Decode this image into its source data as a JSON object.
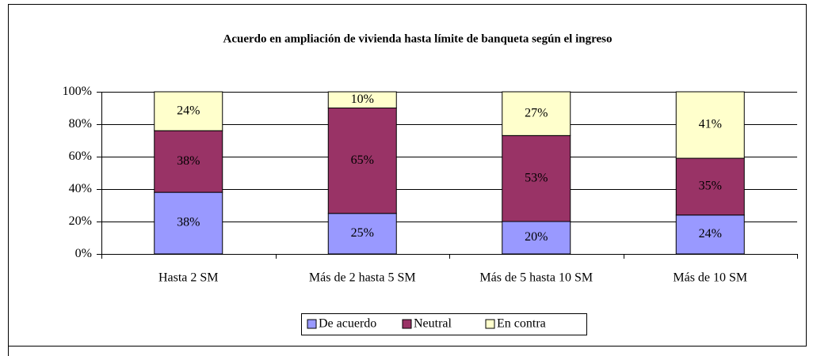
{
  "chart_data": {
    "type": "stacked_bar",
    "title": "Acuerdo en ampliación de vivienda hasta límite de banqueta según el ingreso",
    "categories": [
      "Hasta 2 SM",
      "Más de 2 hasta 5 SM",
      "Más de 5 hasta 10 SM",
      "Más de 10 SM"
    ],
    "series": [
      {
        "name": "De acuerdo",
        "color": "#9999ff",
        "values": [
          38,
          25,
          20,
          24
        ],
        "value_labels": [
          "38%",
          "25%",
          "20%",
          "24%"
        ]
      },
      {
        "name": "Neutral",
        "color": "#993366",
        "values": [
          38,
          65,
          53,
          35
        ],
        "value_labels": [
          "38%",
          "65%",
          "53%",
          "35%"
        ]
      },
      {
        "name": "En contra",
        "color": "#ffffcc",
        "values": [
          24,
          10,
          27,
          41
        ],
        "value_labels": [
          "24%",
          "10%",
          "27%",
          "41%"
        ]
      }
    ],
    "ylim": [
      0,
      100
    ],
    "yticks": [
      {
        "value": 0,
        "label": "0%"
      },
      {
        "value": 20,
        "label": "20%"
      },
      {
        "value": 40,
        "label": "40%"
      },
      {
        "value": 60,
        "label": "60%"
      },
      {
        "value": 80,
        "label": "80%"
      },
      {
        "value": 100,
        "label": "100%"
      }
    ],
    "grid": true,
    "legend": "bottom"
  }
}
